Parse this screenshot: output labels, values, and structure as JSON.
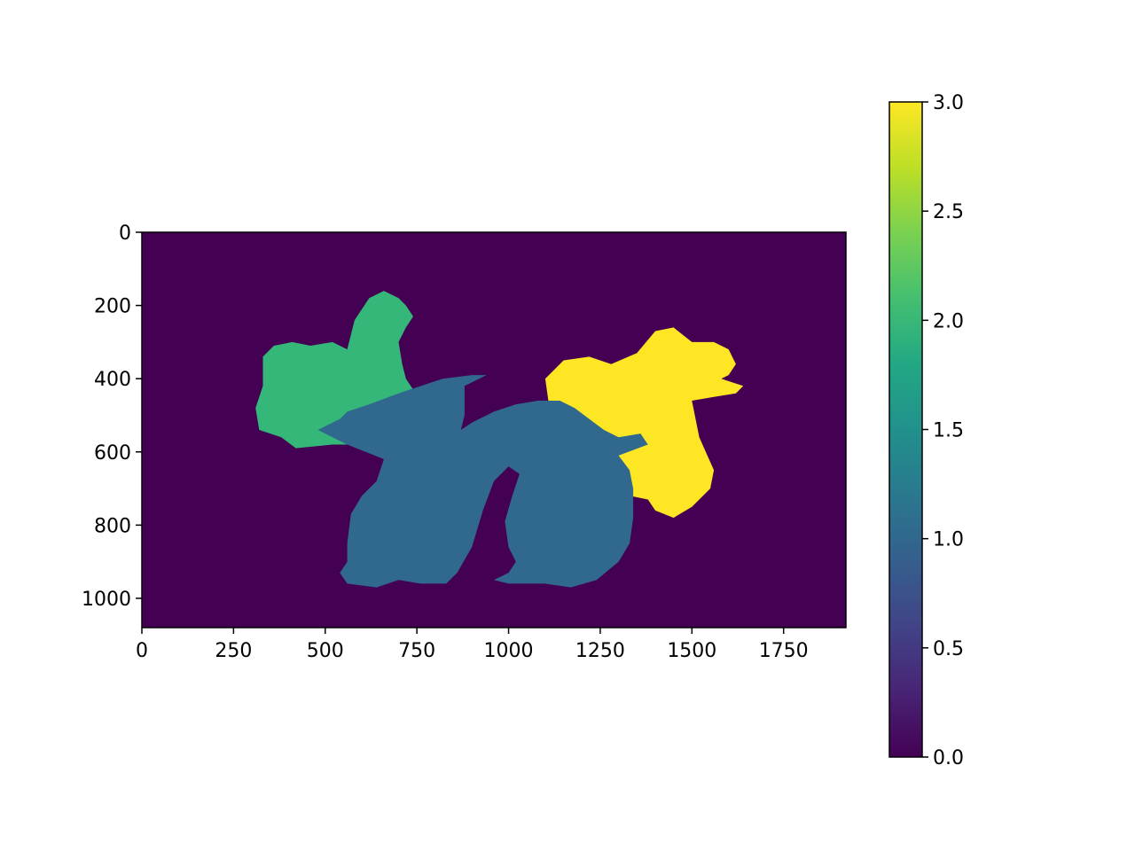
{
  "chart_data": {
    "type": "heatmap",
    "title": "",
    "xlabel": "",
    "ylabel": "",
    "image_extent": {
      "x": [
        0,
        1920
      ],
      "y": [
        1080,
        0
      ]
    },
    "xlim": [
      0,
      1920
    ],
    "ylim": [
      1080,
      0
    ],
    "x_ticks": [
      0,
      250,
      500,
      750,
      1000,
      1250,
      1500,
      1750
    ],
    "x_tick_labels": [
      "0",
      "250",
      "500",
      "750",
      "1000",
      "1250",
      "1500",
      "1750"
    ],
    "y_ticks": [
      0,
      200,
      400,
      600,
      800,
      1000
    ],
    "y_tick_labels": [
      "0",
      "200",
      "400",
      "600",
      "800",
      "1000"
    ],
    "background_value": 0,
    "colormap": "viridis",
    "colorbar": {
      "range": [
        0,
        3
      ],
      "ticks": [
        0.0,
        0.5,
        1.0,
        1.5,
        2.0,
        2.5,
        3.0
      ],
      "tick_labels": [
        "0.0",
        "0.5",
        "1.0",
        "1.5",
        "2.0",
        "2.5",
        "3.0"
      ],
      "gradient_colors": [
        "#440154",
        "#482475",
        "#414487",
        "#355f8d",
        "#2a788e",
        "#21918c",
        "#22a884",
        "#44bf70",
        "#7ad151",
        "#bddf26",
        "#fde725"
      ]
    },
    "regions": [
      {
        "value": 2,
        "color": "#35b779",
        "outline": [
          [
            330,
            340
          ],
          [
            360,
            310
          ],
          [
            410,
            300
          ],
          [
            460,
            310
          ],
          [
            520,
            300
          ],
          [
            560,
            320
          ],
          [
            580,
            240
          ],
          [
            620,
            180
          ],
          [
            660,
            160
          ],
          [
            700,
            180
          ],
          [
            720,
            200
          ],
          [
            740,
            230
          ],
          [
            720,
            260
          ],
          [
            700,
            300
          ],
          [
            710,
            360
          ],
          [
            720,
            400
          ],
          [
            740,
            430
          ],
          [
            760,
            480
          ],
          [
            720,
            530
          ],
          [
            680,
            560
          ],
          [
            600,
            580
          ],
          [
            520,
            580
          ],
          [
            420,
            590
          ],
          [
            380,
            560
          ],
          [
            320,
            540
          ],
          [
            310,
            480
          ],
          [
            330,
            420
          ]
        ]
      },
      {
        "value": 3,
        "color": "#fde725",
        "outline": [
          [
            1280,
            360
          ],
          [
            1350,
            330
          ],
          [
            1400,
            270
          ],
          [
            1450,
            260
          ],
          [
            1500,
            300
          ],
          [
            1560,
            300
          ],
          [
            1600,
            320
          ],
          [
            1620,
            360
          ],
          [
            1600,
            390
          ],
          [
            1580,
            400
          ],
          [
            1640,
            420
          ],
          [
            1620,
            440
          ],
          [
            1560,
            450
          ],
          [
            1500,
            460
          ],
          [
            1520,
            560
          ],
          [
            1560,
            650
          ],
          [
            1550,
            700
          ],
          [
            1500,
            750
          ],
          [
            1450,
            780
          ],
          [
            1400,
            760
          ],
          [
            1380,
            730
          ],
          [
            1330,
            720
          ],
          [
            1300,
            680
          ],
          [
            1240,
            640
          ],
          [
            1180,
            600
          ],
          [
            1150,
            560
          ],
          [
            1110,
            470
          ],
          [
            1100,
            400
          ],
          [
            1150,
            350
          ],
          [
            1220,
            340
          ]
        ]
      },
      {
        "value": 1,
        "color": "#31688e",
        "outline": [
          [
            560,
            490
          ],
          [
            620,
            470
          ],
          [
            700,
            440
          ],
          [
            820,
            400
          ],
          [
            900,
            390
          ],
          [
            940,
            390
          ],
          [
            880,
            420
          ],
          [
            880,
            460
          ],
          [
            880,
            500
          ],
          [
            870,
            540
          ],
          [
            900,
            520
          ],
          [
            960,
            490
          ],
          [
            1020,
            470
          ],
          [
            1080,
            460
          ],
          [
            1140,
            460
          ],
          [
            1180,
            480
          ],
          [
            1220,
            510
          ],
          [
            1260,
            540
          ],
          [
            1300,
            560
          ],
          [
            1360,
            550
          ],
          [
            1380,
            580
          ],
          [
            1300,
            610
          ],
          [
            1330,
            650
          ],
          [
            1340,
            700
          ],
          [
            1340,
            780
          ],
          [
            1330,
            850
          ],
          [
            1300,
            900
          ],
          [
            1240,
            950
          ],
          [
            1170,
            970
          ],
          [
            1100,
            960
          ],
          [
            1000,
            960
          ],
          [
            960,
            950
          ],
          [
            1000,
            930
          ],
          [
            1020,
            900
          ],
          [
            1000,
            860
          ],
          [
            990,
            790
          ],
          [
            1010,
            720
          ],
          [
            1030,
            660
          ],
          [
            1000,
            640
          ],
          [
            960,
            680
          ],
          [
            930,
            760
          ],
          [
            900,
            860
          ],
          [
            860,
            930
          ],
          [
            830,
            960
          ],
          [
            760,
            960
          ],
          [
            700,
            950
          ],
          [
            640,
            970
          ],
          [
            560,
            960
          ],
          [
            540,
            930
          ],
          [
            560,
            900
          ],
          [
            560,
            850
          ],
          [
            570,
            770
          ],
          [
            600,
            720
          ],
          [
            640,
            680
          ],
          [
            660,
            620
          ],
          [
            610,
            600
          ],
          [
            560,
            580
          ],
          [
            520,
            560
          ],
          [
            480,
            540
          ],
          [
            540,
            510
          ]
        ]
      }
    ]
  }
}
